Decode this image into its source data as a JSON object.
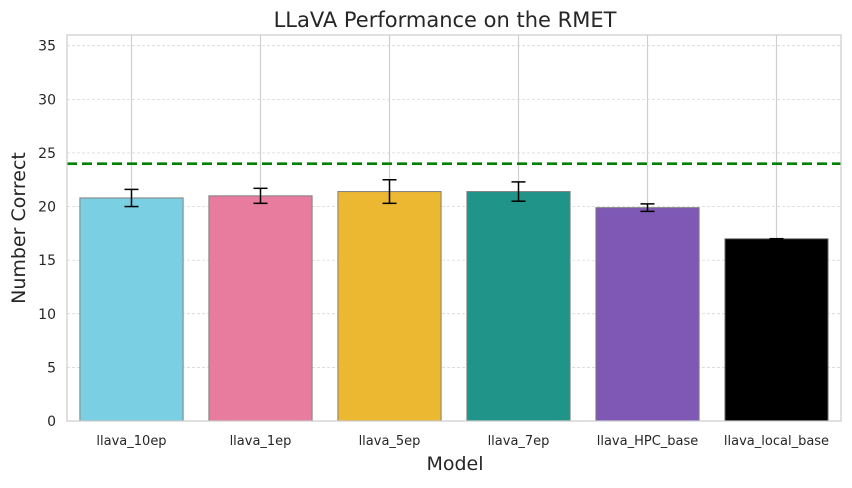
{
  "chart_data": {
    "type": "bar",
    "title": "LLaVA Performance on the RMET",
    "xlabel": "Model",
    "ylabel": "Number Correct",
    "categories": [
      "llava_10ep",
      "llava_1ep",
      "llava_5ep",
      "llava_7ep",
      "llava_HPC_base",
      "llava_local_base"
    ],
    "values": [
      20.8,
      21.0,
      21.4,
      21.4,
      19.9,
      17.0
    ],
    "errors": [
      0.8,
      0.7,
      1.1,
      0.9,
      0.35,
      0.0
    ],
    "colors": [
      "#7ad0e2",
      "#e87c9f",
      "#ecb731",
      "#219489",
      "#7f57b4",
      "#000000"
    ],
    "reference_line": {
      "value": 24,
      "color": "#008000",
      "style": "dashed"
    },
    "ylim": [
      0,
      36
    ],
    "yticks": [
      0,
      5,
      10,
      15,
      20,
      25,
      30,
      35
    ],
    "grid": true
  }
}
